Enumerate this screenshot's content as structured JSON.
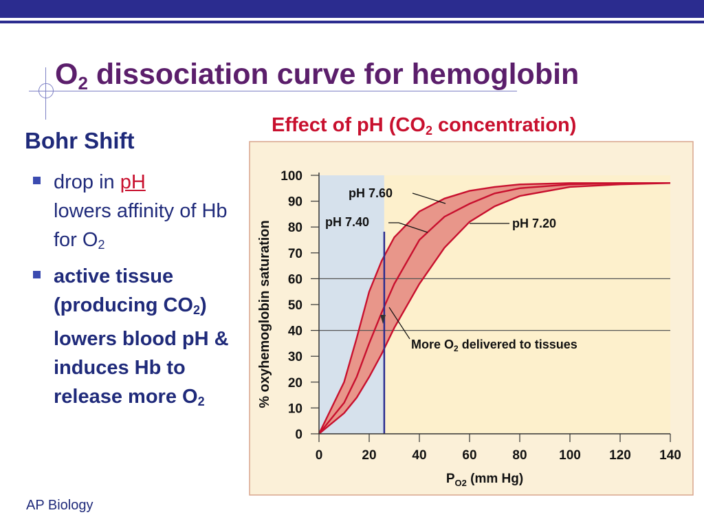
{
  "slide": {
    "title_main": "O",
    "title_sub": "2",
    "title_rest": " dissociation curve for hemoglobin",
    "subtitle": "Bohr Shift",
    "footer": "AP Biology",
    "colors": {
      "bar": "#2b2c8f",
      "title": "#5b1e6b",
      "heading": "#c8102e",
      "text": "#1f2a7a"
    }
  },
  "chart_heading": {
    "pre": "Effect of pH (CO",
    "sub": "2",
    "post": " concentration)"
  },
  "bullets": [
    {
      "parts": [
        "drop in ",
        "pH",
        " lowers affinity of Hb for O",
        "2"
      ]
    },
    {
      "parts": [
        "active tissue (producing CO",
        "2",
        ") lowers blood pH & induces Hb to release more O",
        "2"
      ]
    }
  ],
  "chart_data": {
    "type": "line",
    "title": "",
    "xlabel_pre": "P",
    "xlabel_sub": "O2",
    "xlabel_post": " (mm Hg)",
    "ylabel": "% oxyhemoglobin saturation",
    "xlim": [
      0,
      140
    ],
    "ylim": [
      0,
      100
    ],
    "x_ticks": [
      0,
      20,
      40,
      60,
      80,
      100,
      120,
      140
    ],
    "y_ticks": [
      0,
      10,
      20,
      30,
      40,
      50,
      60,
      70,
      80,
      90,
      100
    ],
    "grid_y": [
      40,
      60
    ],
    "marker_x": 26,
    "series": [
      {
        "name": "pH 7.60",
        "x": [
          0,
          10,
          15,
          20,
          25,
          30,
          40,
          50,
          60,
          70,
          80,
          100,
          120,
          140
        ],
        "y": [
          0,
          20,
          37,
          55,
          67,
          76,
          86,
          91,
          94,
          95.5,
          96.5,
          97,
          97,
          97
        ]
      },
      {
        "name": "pH 7.40",
        "x": [
          0,
          10,
          15,
          20,
          25,
          30,
          40,
          50,
          60,
          70,
          80,
          100,
          120,
          140
        ],
        "y": [
          0,
          12,
          22,
          35,
          47,
          58,
          75,
          84,
          89,
          93,
          95,
          96.5,
          97,
          97
        ]
      },
      {
        "name": "pH 7.20",
        "x": [
          0,
          10,
          15,
          20,
          25,
          30,
          40,
          50,
          60,
          70,
          80,
          100,
          120,
          140
        ],
        "y": [
          0,
          8,
          14,
          22,
          31,
          41,
          58,
          72,
          82,
          88,
          92,
          95.5,
          96.5,
          97
        ]
      }
    ],
    "annotations": [
      {
        "text": "pH 7.60"
      },
      {
        "text": "pH 7.40"
      },
      {
        "text": "pH 7.20"
      },
      {
        "text_pre": "More O",
        "text_sub": "2",
        "text_post": " delivered to tissues"
      }
    ],
    "colors": {
      "curve": "#c8102e",
      "band": "#e8968a",
      "left_region": "#d6e1ec",
      "right_region": "#fdf0cc",
      "frame": "#fbf0d8",
      "marker": "#2b2c8f"
    }
  }
}
